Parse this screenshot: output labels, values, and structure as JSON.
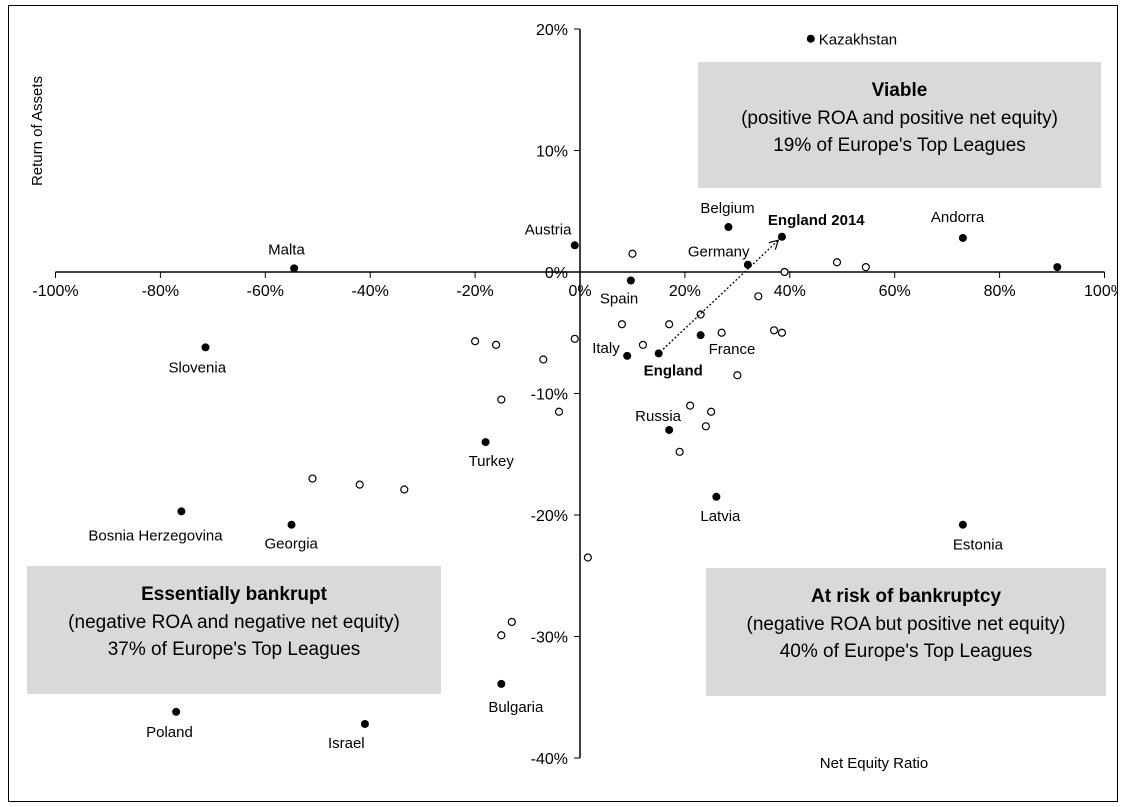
{
  "chart_data": {
    "type": "scatter",
    "xlabel": "Net Equity Ratio",
    "ylabel": "Return of Assets",
    "xlim": [
      -1.0,
      1.0
    ],
    "ylim": [
      -0.4,
      0.2
    ],
    "x_ticks": [
      "-100%",
      "-80%",
      "-60%",
      "-40%",
      "-20%",
      "0%",
      "20%",
      "40%",
      "60%",
      "80%",
      "100%"
    ],
    "y_ticks": [
      "20%",
      "10%",
      "0%",
      "-10%",
      "-20%",
      "-30%",
      "-40%"
    ],
    "grid": false,
    "labeled_points": [
      {
        "label": "Kazakhstan",
        "x": 0.44,
        "y": 0.192,
        "bold": false
      },
      {
        "label": "Belgium",
        "x": 0.283,
        "y": 0.037,
        "bold": false
      },
      {
        "label": "England 2014",
        "x": 0.385,
        "y": 0.029,
        "bold": true
      },
      {
        "label": "Andorra",
        "x": 0.73,
        "y": 0.028,
        "bold": false
      },
      {
        "label": "Austria",
        "x": -0.01,
        "y": 0.022,
        "bold": false
      },
      {
        "label": "Germany",
        "x": 0.32,
        "y": 0.006,
        "bold": false
      },
      {
        "label": "Malta",
        "x": -0.545,
        "y": 0.003,
        "bold": false
      },
      {
        "label": "",
        "x": 0.91,
        "y": 0.004,
        "bold": false
      },
      {
        "label": "Spain",
        "x": 0.097,
        "y": -0.007,
        "bold": false
      },
      {
        "label": "Slovenia",
        "x": -0.714,
        "y": -0.062,
        "bold": false
      },
      {
        "label": "France",
        "x": 0.23,
        "y": -0.052,
        "bold": false
      },
      {
        "label": "Italy",
        "x": 0.09,
        "y": -0.069,
        "bold": false
      },
      {
        "label": "England",
        "x": 0.15,
        "y": -0.067,
        "bold": true
      },
      {
        "label": "Russia",
        "x": 0.17,
        "y": -0.13,
        "bold": false
      },
      {
        "label": "Turkey",
        "x": -0.18,
        "y": -0.14,
        "bold": false
      },
      {
        "label": "Latvia",
        "x": 0.26,
        "y": -0.185,
        "bold": false
      },
      {
        "label": "Bosnia Herzegovina",
        "x": -0.76,
        "y": -0.197,
        "bold": false
      },
      {
        "label": "Georgia",
        "x": -0.55,
        "y": -0.208,
        "bold": false
      },
      {
        "label": "Estonia",
        "x": 0.73,
        "y": -0.208,
        "bold": false
      },
      {
        "label": "Bulgaria",
        "x": -0.15,
        "y": -0.339,
        "bold": false
      },
      {
        "label": "Poland",
        "x": -0.77,
        "y": -0.362,
        "bold": false
      },
      {
        "label": "Israel",
        "x": -0.41,
        "y": -0.372,
        "bold": false
      }
    ],
    "other_points": [
      {
        "x": 0.1,
        "y": 0.015
      },
      {
        "x": 0.49,
        "y": 0.008
      },
      {
        "x": 0.545,
        "y": 0.004
      },
      {
        "x": 0.39,
        "y": 0.0
      },
      {
        "x": 0.23,
        "y": -0.035
      },
      {
        "x": 0.34,
        "y": -0.02
      },
      {
        "x": 0.37,
        "y": -0.048
      },
      {
        "x": 0.385,
        "y": -0.05
      },
      {
        "x": 0.27,
        "y": -0.05
      },
      {
        "x": 0.17,
        "y": -0.043
      },
      {
        "x": 0.08,
        "y": -0.043
      },
      {
        "x": -0.01,
        "y": -0.055
      },
      {
        "x": 0.12,
        "y": -0.06
      },
      {
        "x": -0.2,
        "y": -0.057
      },
      {
        "x": -0.16,
        "y": -0.06
      },
      {
        "x": -0.07,
        "y": -0.072
      },
      {
        "x": 0.3,
        "y": -0.085
      },
      {
        "x": -0.15,
        "y": -0.105
      },
      {
        "x": -0.04,
        "y": -0.115
      },
      {
        "x": 0.21,
        "y": -0.11
      },
      {
        "x": 0.25,
        "y": -0.115
      },
      {
        "x": 0.24,
        "y": -0.127
      },
      {
        "x": 0.19,
        "y": -0.148
      },
      {
        "x": -0.51,
        "y": -0.17
      },
      {
        "x": -0.42,
        "y": -0.175
      },
      {
        "x": -0.335,
        "y": -0.179
      },
      {
        "x": 0.015,
        "y": -0.235
      },
      {
        "x": -0.13,
        "y": -0.288
      },
      {
        "x": -0.15,
        "y": -0.299
      }
    ],
    "arrow": {
      "from": "England",
      "to": "England 2014"
    },
    "quadrant_boxes": [
      {
        "title": "Viable",
        "line1": "(positive ROA and positive net equity)",
        "line2": "19% of Europe's Top Leagues"
      },
      {
        "title": "Essentially bankrupt",
        "line1": "(negative ROA and negative net equity)",
        "line2": "37% of Europe's Top Leagues"
      },
      {
        "title": "At risk of bankruptcy",
        "line1": "(negative ROA but positive net equity)",
        "line2": "40% of Europe's Top Leagues"
      }
    ]
  }
}
